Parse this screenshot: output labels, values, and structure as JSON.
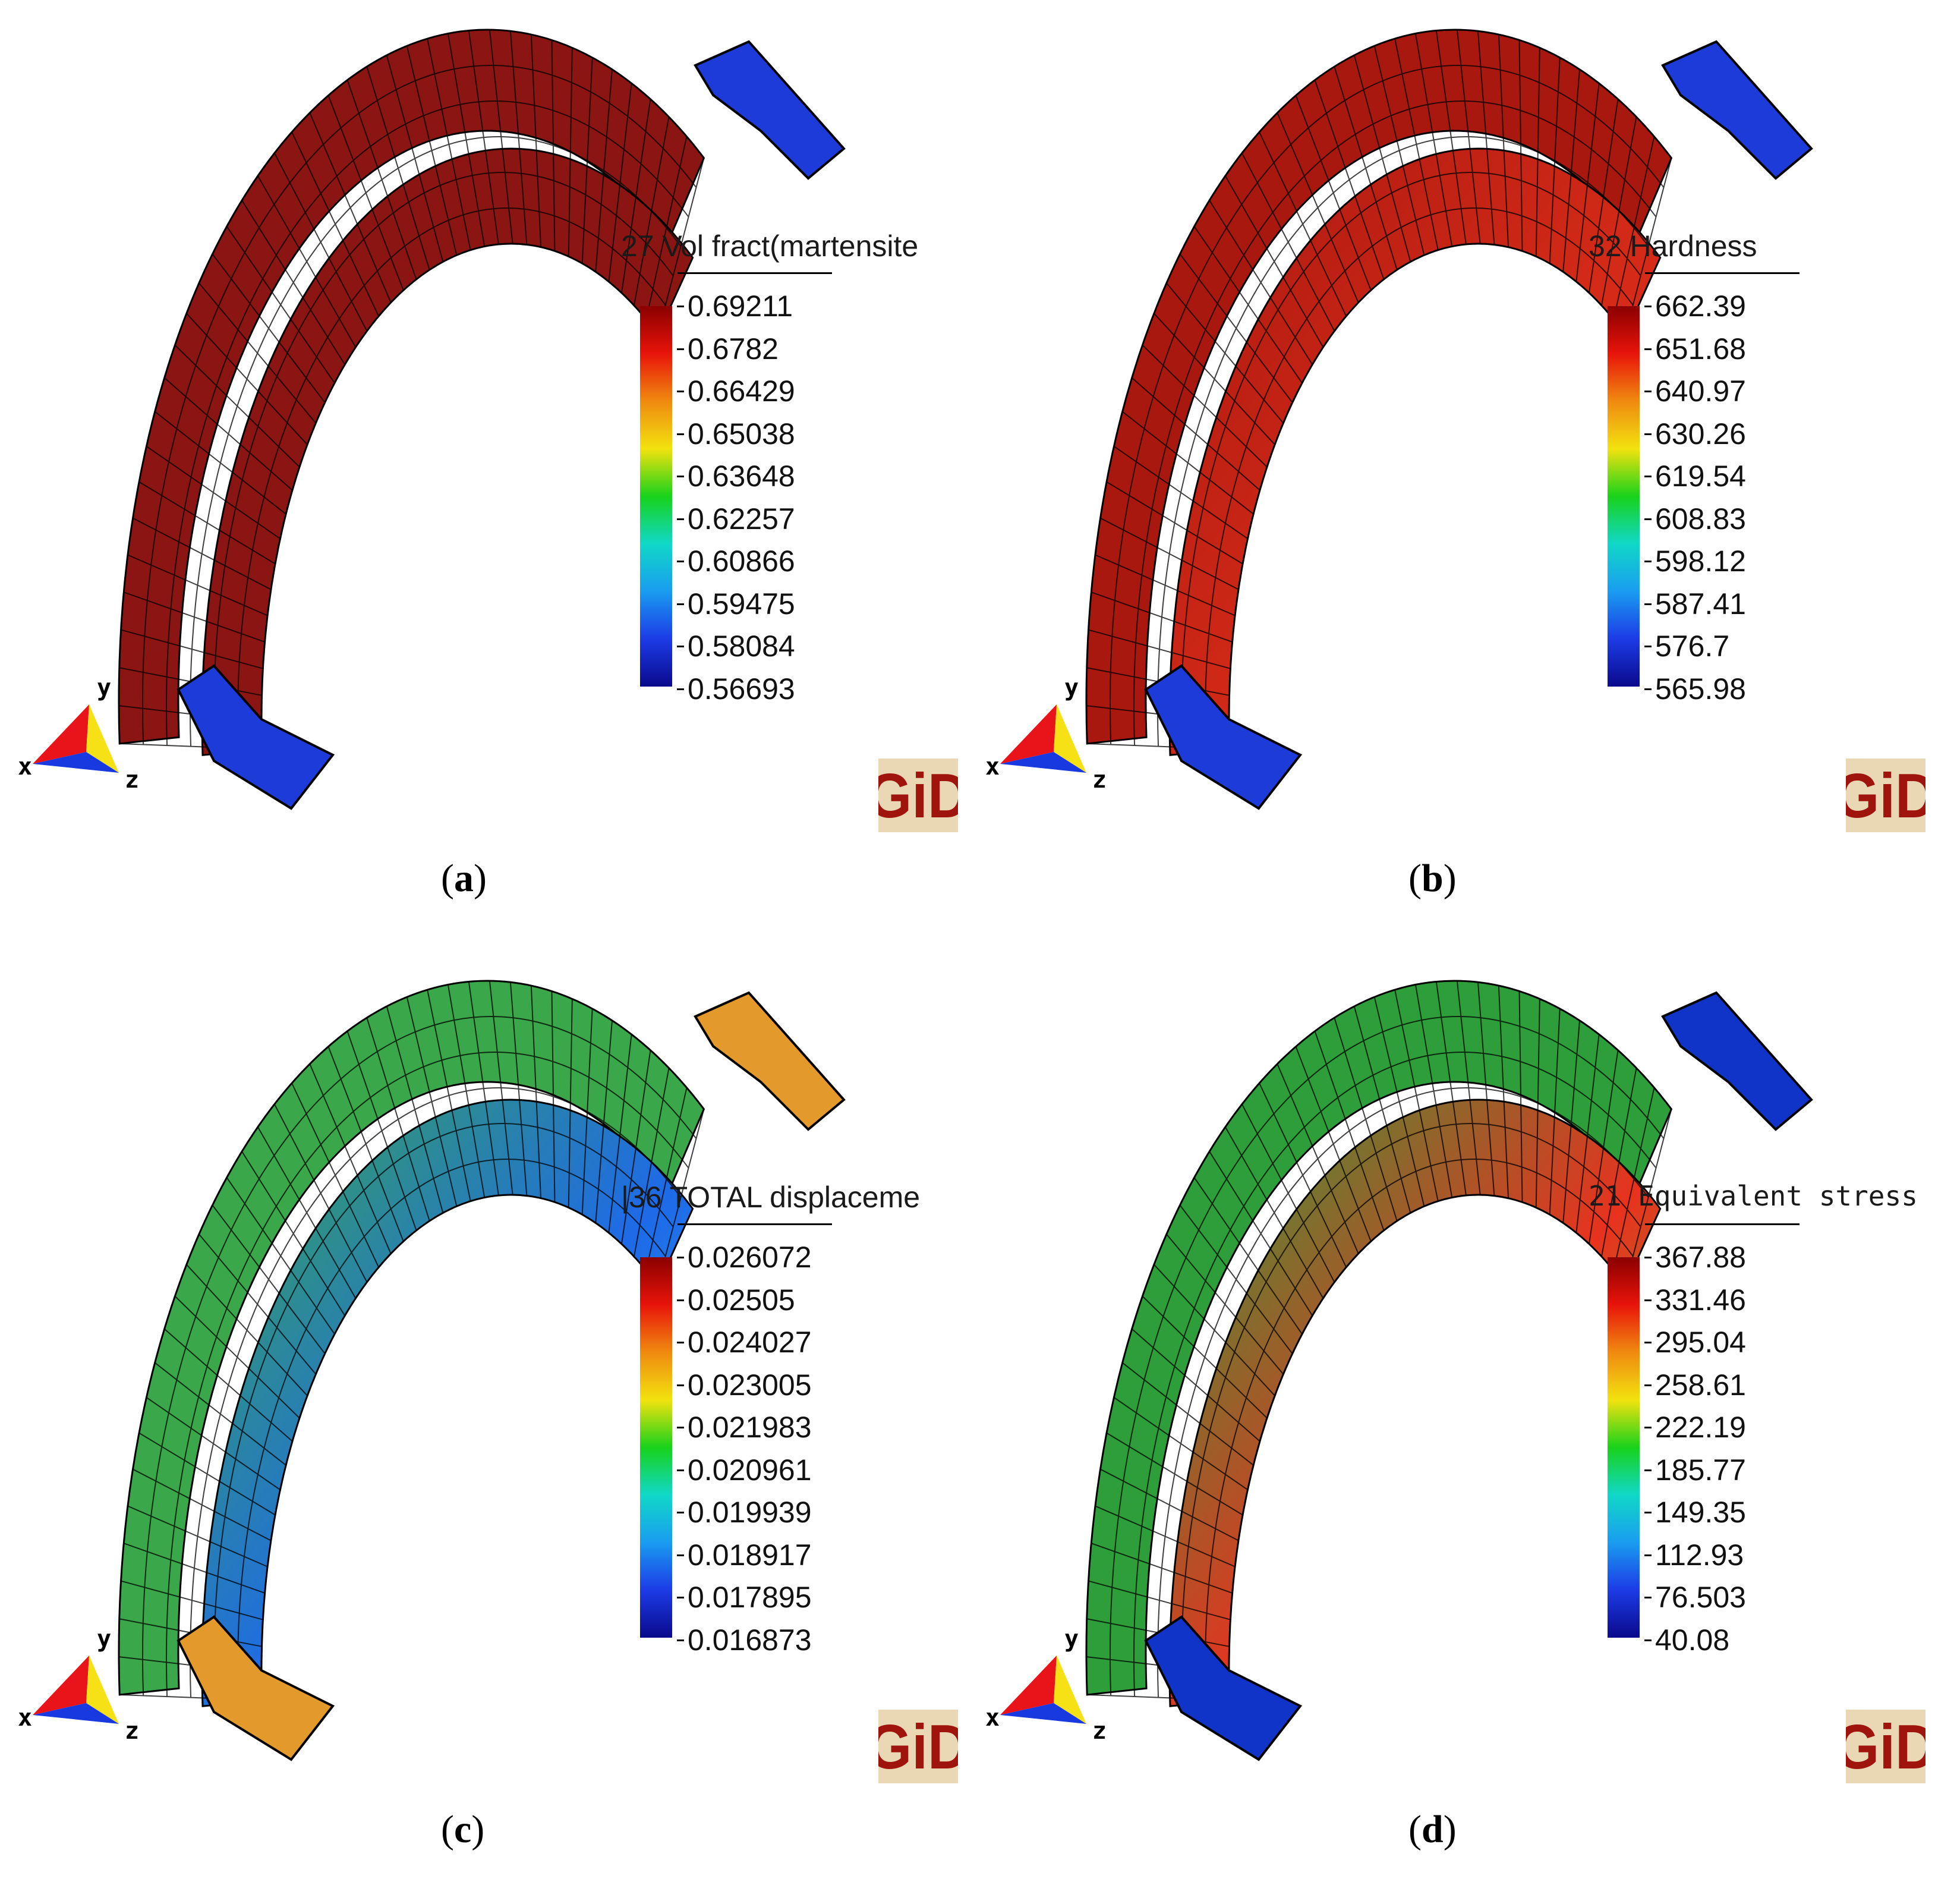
{
  "figure": {
    "panels": [
      {
        "id": "a",
        "caption_label": "a",
        "legend_title": "27 Vol fract(martensite",
        "ticks": [
          "0.69211",
          "0.6782",
          "0.66429",
          "0.65038",
          "0.63648",
          "0.62257",
          "0.60866",
          "0.59475",
          "0.58084",
          "0.56693"
        ],
        "ring_colors": {
          "outer": "#8b1512",
          "inner": "#981a14",
          "band": "#8b1512",
          "end": "#1d3bd9"
        }
      },
      {
        "id": "b",
        "caption_label": "b",
        "legend_title": "32 Hardness",
        "ticks": [
          "662.39",
          "651.68",
          "640.97",
          "630.26",
          "619.54",
          "608.83",
          "598.12",
          "587.41",
          "576.7",
          "565.98"
        ],
        "ring_colors": {
          "outer": "#a8180f",
          "inner": "#e8321e",
          "band": "#d42a18",
          "end": "#1d3bd9"
        }
      },
      {
        "id": "c",
        "caption_label": "c",
        "legend_title": "|36 TOTAL displaceme",
        "ticks": [
          "0.026072",
          "0.02505",
          "0.024027",
          "0.023005",
          "0.021983",
          "0.020961",
          "0.019939",
          "0.018917",
          "0.017895",
          "0.016873"
        ],
        "ring_colors": {
          "outer": "#3aa84a",
          "inner": "#28a8f0",
          "band": "#1e6ae8",
          "end": "#e39a2a"
        }
      },
      {
        "id": "d",
        "caption_label": "d",
        "legend_title": "21 Equivalent stress",
        "ticks": [
          "367.88",
          "331.46",
          "295.04",
          "258.61",
          "222.19",
          "185.77",
          "149.35",
          "112.93",
          "76.503",
          "40.08"
        ],
        "ring_colors": {
          "outer": "#2e9e3a",
          "inner": "#55d428",
          "band": "#e8321e",
          "end": "#1034c8"
        }
      }
    ],
    "axis_labels": {
      "x": "x",
      "y": "y",
      "z": "z"
    },
    "logo_text": "GiD",
    "colorbar_stops": [
      "#8b0000",
      "#e8140a",
      "#f08a10",
      "#f2e20f",
      "#18d21a",
      "#10d8c8",
      "#1a9cf0",
      "#1c3be6",
      "#0a0a8c"
    ]
  }
}
